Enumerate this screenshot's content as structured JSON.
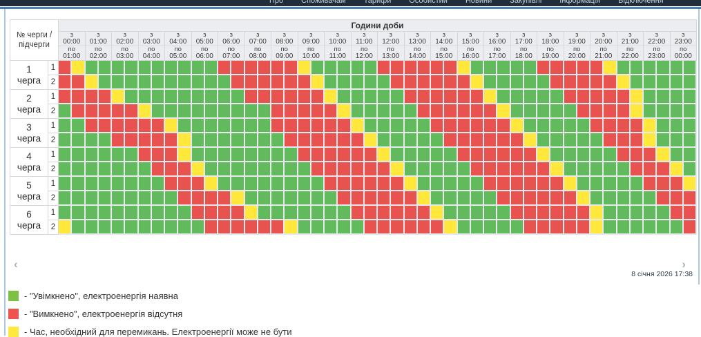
{
  "nav": {
    "items": [
      "Про",
      "Споживачам",
      "Тарифи",
      "Особистий",
      "Новини",
      "Закупівлі",
      "Інформація",
      "Відключення"
    ]
  },
  "schedule": {
    "corner": {
      "line1": "№ черги /",
      "line2": "підчерги"
    },
    "hours_title": "Години доби",
    "from_prefix": "з",
    "to_prefix": "по",
    "columns": [
      {
        "from": "00:00",
        "to": "01:00"
      },
      {
        "from": "01:00",
        "to": "02:00"
      },
      {
        "from": "02:00",
        "to": "03:00"
      },
      {
        "from": "03:00",
        "to": "04:00"
      },
      {
        "from": "04:00",
        "to": "05:00"
      },
      {
        "from": "05:00",
        "to": "06:00"
      },
      {
        "from": "06:00",
        "to": "07:00"
      },
      {
        "from": "07:00",
        "to": "08:00"
      },
      {
        "from": "08:00",
        "to": "09:00"
      },
      {
        "from": "09:00",
        "to": "10:00"
      },
      {
        "from": "10:00",
        "to": "11:00"
      },
      {
        "from": "11:00",
        "to": "12:00"
      },
      {
        "from": "12:00",
        "to": "13:00"
      },
      {
        "from": "13:00",
        "to": "14:00"
      },
      {
        "from": "14:00",
        "to": "15:00"
      },
      {
        "from": "15:00",
        "to": "16:00"
      },
      {
        "from": "16:00",
        "to": "17:00"
      },
      {
        "from": "17:00",
        "to": "18:00"
      },
      {
        "from": "18:00",
        "to": "19:00"
      },
      {
        "from": "19:00",
        "to": "20:00"
      },
      {
        "from": "20:00",
        "to": "21:00"
      },
      {
        "from": "21:00",
        "to": "22:00"
      },
      {
        "from": "22:00",
        "to": "23:00"
      },
      {
        "from": "23:00",
        "to": "00:00"
      }
    ],
    "cell_codes": {
      "G": "on",
      "R": "off",
      "Y": "switching"
    },
    "queues": [
      {
        "num": "1",
        "word": "черга",
        "subqueues": [
          {
            "label": "1",
            "cells": "RYGGGGGGGGGGRRRRRRYGGGGGRRRRRRYGGGGGRRRRRYGGGGGG"
          },
          {
            "label": "2",
            "cells": "RRYGGGGGGGGGGRRRRRRYGGGGGRRRRRRYGGGGGRRRRRYGGGGG"
          }
        ]
      },
      {
        "num": "2",
        "word": "черга",
        "subqueues": [
          {
            "label": "1",
            "cells": "RRRRYGGGGGGGGGRRRRRRYGGGGGRRRRRRYGGGGGRRRRRYGGGG"
          },
          {
            "label": "2",
            "cells": "GRRRRRYGGGGGGGGGRRRRRYGGGGGRRRRRRYGGGGGRRRRYGGGG"
          }
        ]
      },
      {
        "num": "3",
        "word": "черга",
        "subqueues": [
          {
            "label": "1",
            "cells": "GGRRRRRRYGGGGGGGRRRRRRYGGGGGRRRRRRYGGGGGRRRRYGGG"
          },
          {
            "label": "2",
            "cells": "GGGGRRRRRYGGGGGGGRRRRRRYGGGGGRRRRRRYGGGGGRRRYGGG"
          }
        ]
      },
      {
        "num": "4",
        "word": "черга",
        "subqueues": [
          {
            "label": "1",
            "cells": "GGGGGGRRRYGGGGGGGGRRRRRRYGGGGGRRRRRRYGGGGGRRRYGG"
          },
          {
            "label": "2",
            "cells": "GGGGGGGRRRYGGGGGGGGRRRRRRYGGGGGRRRRRRYGGGGGRRRYG"
          }
        ]
      },
      {
        "num": "5",
        "word": "черга",
        "subqueues": [
          {
            "label": "1",
            "cells": "GGGGGGGGRRRYGGGGGGGGRRRRRRYGGGGGRRRRRRYGGGGGRRRY"
          },
          {
            "label": "2",
            "cells": "GGGGGGGGGRRRRYGGGGGGGRRRRRRYGGGGGRRRRRRYGGGGGRRR"
          }
        ]
      },
      {
        "num": "6",
        "word": "черга",
        "subqueues": [
          {
            "label": "1",
            "cells": "GGGGGGGGGGRRRRYGGGGGGGRRRRRRYGGGGGRRRRRRYGGGGGRR"
          },
          {
            "label": "2",
            "cells": "YGGGGGGGGGGRRRRRRYGGGGGRRRRRRYGGGGGRRRRRYGGGGGGR"
          }
        ]
      }
    ]
  },
  "footer": {
    "prev_icon": "‹",
    "next_icon": "›",
    "updated": "8 січня 2026 17:38"
  },
  "legend": {
    "items": [
      {
        "key": "on",
        "text": "- \"Увімкнено\", електроенергія наявна"
      },
      {
        "key": "off",
        "text": "- \"Вимкнено\", електроенергія відсутня"
      },
      {
        "key": "switching",
        "text": "- Час, необхідний для перемикань. Електроенергії може не бути"
      }
    ]
  },
  "colors": {
    "on": "#61ba5c",
    "off": "#e9534f",
    "switching": "#ffe83b",
    "legend_on": "#7cc143",
    "legend_off": "#ef5350",
    "legend_switching": "#ffe93f"
  }
}
